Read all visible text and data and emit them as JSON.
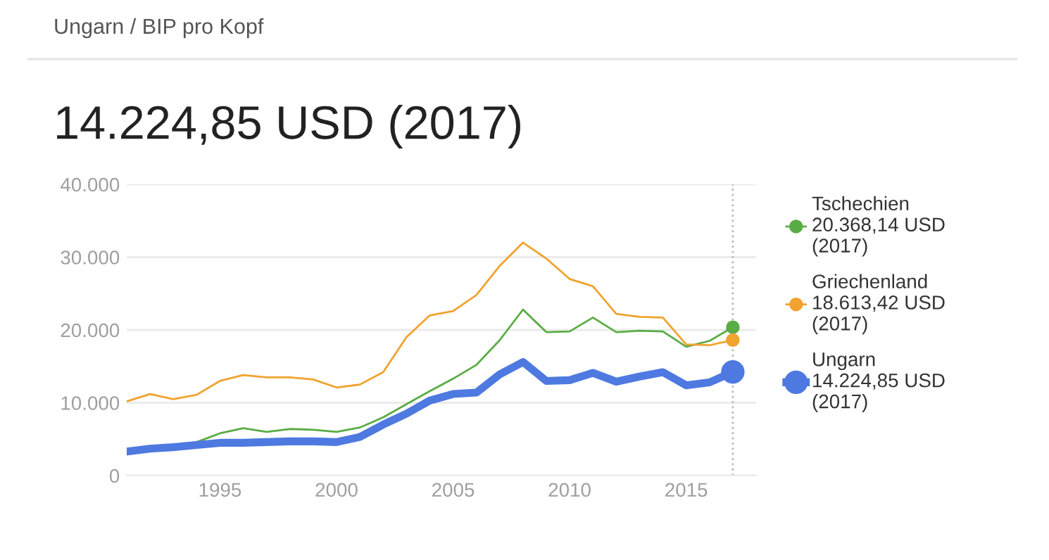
{
  "chart_data": {
    "type": "line",
    "subtitle": "Ungarn / BIP pro Kopf",
    "title": "14.224,85 USD (2017)",
    "x": [
      1991,
      1992,
      1993,
      1994,
      1995,
      1996,
      1997,
      1998,
      1999,
      2000,
      2001,
      2002,
      2003,
      2004,
      2005,
      2006,
      2007,
      2008,
      2009,
      2010,
      2011,
      2012,
      2013,
      2014,
      2015,
      2016,
      2017
    ],
    "series": [
      {
        "name": "Tschechien",
        "color": "#5aac44",
        "values": [
          null,
          null,
          null,
          4600,
          5800,
          6500,
          6000,
          6400,
          6300,
          6000,
          6600,
          8000,
          9800,
          11600,
          13300,
          15200,
          18600,
          22800,
          19700,
          19800,
          21700,
          19700,
          19900,
          19800,
          17700,
          18500,
          20368.14
        ]
      },
      {
        "name": "Griechenland",
        "color": "#f0a32f",
        "values": [
          10200,
          11200,
          10500,
          11100,
          13000,
          13800,
          13500,
          13500,
          13200,
          12100,
          12500,
          14200,
          19000,
          22000,
          22600,
          24800,
          28800,
          32000,
          29800,
          27000,
          26000,
          22200,
          21800,
          21700,
          18000,
          17900,
          18613.42
        ]
      },
      {
        "name": "Ungarn",
        "color": "#4e79e0",
        "values": [
          3300,
          3700,
          3900,
          4200,
          4500,
          4500,
          4600,
          4700,
          4700,
          4600,
          5300,
          7000,
          8500,
          10300,
          11200,
          11400,
          13900,
          15600,
          13000,
          13100,
          14100,
          12900,
          13600,
          14200,
          12400,
          12800,
          14224.85
        ]
      }
    ],
    "annotations": [
      "20.368,14 USD\n(2017)",
      "18.613,42 USD\n(2017)",
      "14.224,85 USD\n(2017)"
    ],
    "xlim": [
      1991,
      2018
    ],
    "xticks": [
      1995,
      2000,
      2005,
      2010,
      2015
    ],
    "ylim": [
      0,
      40000
    ],
    "yticks": [
      {
        "value": 0,
        "label": "0"
      },
      {
        "value": 10000,
        "label": "10.000"
      },
      {
        "value": 20000,
        "label": "20.000"
      },
      {
        "value": 30000,
        "label": "30.000"
      },
      {
        "value": 40000,
        "label": "40.000"
      }
    ],
    "ref_lines": [
      {
        "axis": "x",
        "value": 2017,
        "color": "#bbbbbb",
        "line_style": "dotted"
      }
    ],
    "grid": "y",
    "legend": "right"
  }
}
